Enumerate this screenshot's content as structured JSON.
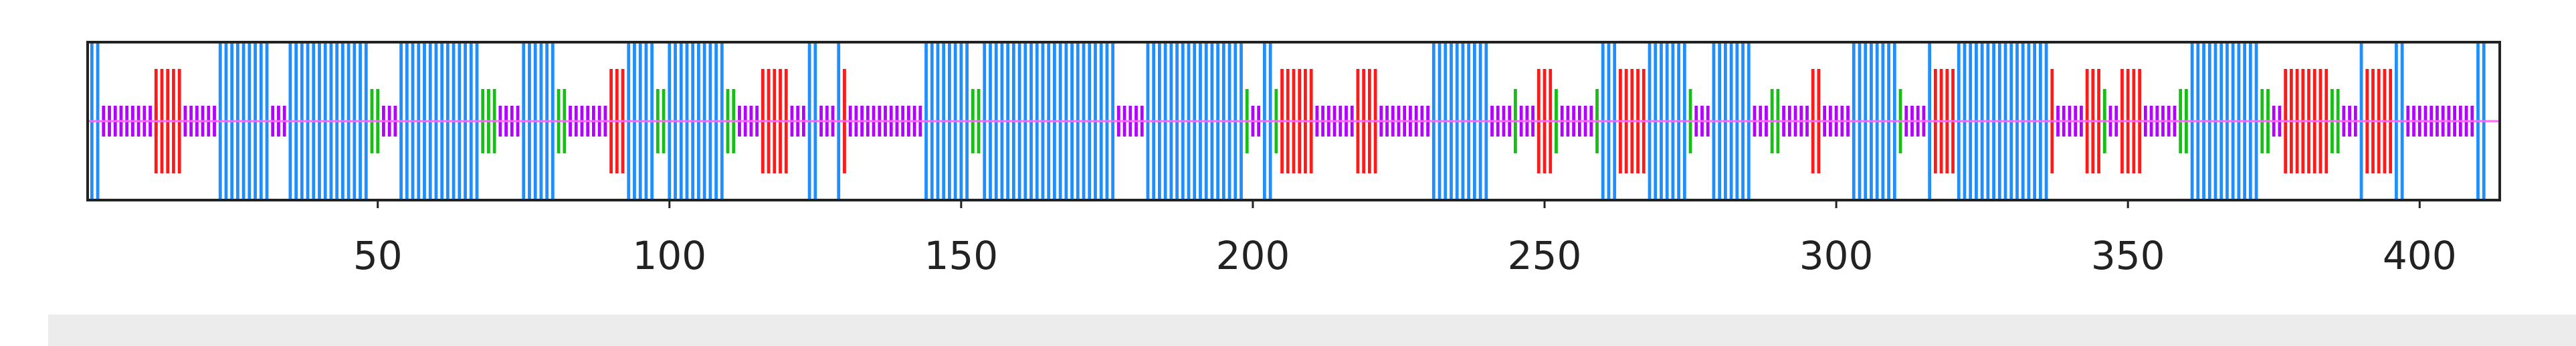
{
  "chart_data": {
    "type": "residue-track",
    "xlim": [
      0.5,
      413.5
    ],
    "xticks": [
      "50",
      "100",
      "150",
      "200",
      "250",
      "300",
      "350",
      "400"
    ],
    "colors": {
      "frame": "#222222",
      "axis_line": "#ff66ff",
      "helix": "#1f8fff",
      "strand": "#ff1a1a",
      "turn": "#15c015",
      "coil": "#b300ff"
    },
    "segments": [
      {
        "class": "helix",
        "start": 1,
        "end": 2
      },
      {
        "class": "coil",
        "start": 3,
        "end": 12
      },
      {
        "class": "strand",
        "start": 12,
        "end": 16
      },
      {
        "class": "coil",
        "start": 17,
        "end": 22
      },
      {
        "class": "helix",
        "start": 23,
        "end": 31
      },
      {
        "class": "coil",
        "start": 32,
        "end": 34
      },
      {
        "class": "helix",
        "start": 35,
        "end": 48
      },
      {
        "class": "turn",
        "start": 49,
        "end": 50
      },
      {
        "class": "coil",
        "start": 51,
        "end": 53
      },
      {
        "class": "helix",
        "start": 54,
        "end": 67
      },
      {
        "class": "turn",
        "start": 68,
        "end": 70
      },
      {
        "class": "coil",
        "start": 71,
        "end": 74
      },
      {
        "class": "helix",
        "start": 75,
        "end": 80
      },
      {
        "class": "turn",
        "start": 81,
        "end": 82
      },
      {
        "class": "coil",
        "start": 83,
        "end": 89
      },
      {
        "class": "strand",
        "start": 90,
        "end": 92
      },
      {
        "class": "helix",
        "start": 93,
        "end": 97
      },
      {
        "class": "turn",
        "start": 98,
        "end": 99
      },
      {
        "class": "helix",
        "start": 100,
        "end": 109
      },
      {
        "class": "turn",
        "start": 110,
        "end": 111
      },
      {
        "class": "coil",
        "start": 112,
        "end": 115
      },
      {
        "class": "strand",
        "start": 116,
        "end": 120
      },
      {
        "class": "coil",
        "start": 121,
        "end": 123
      },
      {
        "class": "helix",
        "start": 124,
        "end": 125
      },
      {
        "class": "coil",
        "start": 126,
        "end": 128
      },
      {
        "class": "helix",
        "start": 129,
        "end": 129
      },
      {
        "class": "strand",
        "start": 130,
        "end": 130
      },
      {
        "class": "coil",
        "start": 131,
        "end": 143
      },
      {
        "class": "helix",
        "start": 144,
        "end": 151
      },
      {
        "class": "turn",
        "start": 152,
        "end": 153
      },
      {
        "class": "helix",
        "start": 154,
        "end": 176
      },
      {
        "class": "coil",
        "start": 177,
        "end": 181
      },
      {
        "class": "helix",
        "start": 182,
        "end": 198
      },
      {
        "class": "turn",
        "start": 199,
        "end": 199
      },
      {
        "class": "coil",
        "start": 200,
        "end": 201
      },
      {
        "class": "helix",
        "start": 202,
        "end": 203
      },
      {
        "class": "turn",
        "start": 204,
        "end": 204
      },
      {
        "class": "strand",
        "start": 205,
        "end": 210
      },
      {
        "class": "coil",
        "start": 211,
        "end": 217
      },
      {
        "class": "strand",
        "start": 218,
        "end": 221
      },
      {
        "class": "coil",
        "start": 222,
        "end": 230
      },
      {
        "class": "helix",
        "start": 231,
        "end": 240
      },
      {
        "class": "coil",
        "start": 241,
        "end": 244
      },
      {
        "class": "turn",
        "start": 245,
        "end": 245
      },
      {
        "class": "coil",
        "start": 246,
        "end": 248
      },
      {
        "class": "strand",
        "start": 249,
        "end": 251
      },
      {
        "class": "turn",
        "start": 252,
        "end": 252
      },
      {
        "class": "coil",
        "start": 253,
        "end": 258
      },
      {
        "class": "turn",
        "start": 259,
        "end": 259
      },
      {
        "class": "helix",
        "start": 260,
        "end": 262
      },
      {
        "class": "strand",
        "start": 263,
        "end": 267
      },
      {
        "class": "helix",
        "start": 268,
        "end": 274
      },
      {
        "class": "turn",
        "start": 275,
        "end": 275
      },
      {
        "class": "coil",
        "start": 276,
        "end": 278
      },
      {
        "class": "helix",
        "start": 279,
        "end": 285
      },
      {
        "class": "coil",
        "start": 286,
        "end": 288
      },
      {
        "class": "turn",
        "start": 289,
        "end": 290
      },
      {
        "class": "coil",
        "start": 291,
        "end": 295
      },
      {
        "class": "strand",
        "start": 296,
        "end": 297
      },
      {
        "class": "coil",
        "start": 298,
        "end": 302
      },
      {
        "class": "helix",
        "start": 303,
        "end": 310
      },
      {
        "class": "turn",
        "start": 311,
        "end": 311
      },
      {
        "class": "coil",
        "start": 312,
        "end": 315
      },
      {
        "class": "helix",
        "start": 316,
        "end": 316
      },
      {
        "class": "strand",
        "start": 317,
        "end": 320
      },
      {
        "class": "helix",
        "start": 321,
        "end": 336
      },
      {
        "class": "strand",
        "start": 337,
        "end": 337
      },
      {
        "class": "coil",
        "start": 338,
        "end": 342
      },
      {
        "class": "strand",
        "start": 343,
        "end": 345
      },
      {
        "class": "turn",
        "start": 346,
        "end": 346
      },
      {
        "class": "coil",
        "start": 347,
        "end": 348
      },
      {
        "class": "strand",
        "start": 349,
        "end": 352
      },
      {
        "class": "coil",
        "start": 353,
        "end": 358
      },
      {
        "class": "turn",
        "start": 359,
        "end": 360
      },
      {
        "class": "helix",
        "start": 361,
        "end": 372
      },
      {
        "class": "turn",
        "start": 373,
        "end": 374
      },
      {
        "class": "coil",
        "start": 375,
        "end": 376
      },
      {
        "class": "strand",
        "start": 377,
        "end": 384
      },
      {
        "class": "turn",
        "start": 385,
        "end": 386
      },
      {
        "class": "coil",
        "start": 387,
        "end": 389
      },
      {
        "class": "helix",
        "start": 390,
        "end": 390
      },
      {
        "class": "strand",
        "start": 391,
        "end": 395
      },
      {
        "class": "helix",
        "start": 396,
        "end": 397
      },
      {
        "class": "coil",
        "start": 398,
        "end": 409
      },
      {
        "class": "helix",
        "start": 410,
        "end": 411
      }
    ]
  }
}
